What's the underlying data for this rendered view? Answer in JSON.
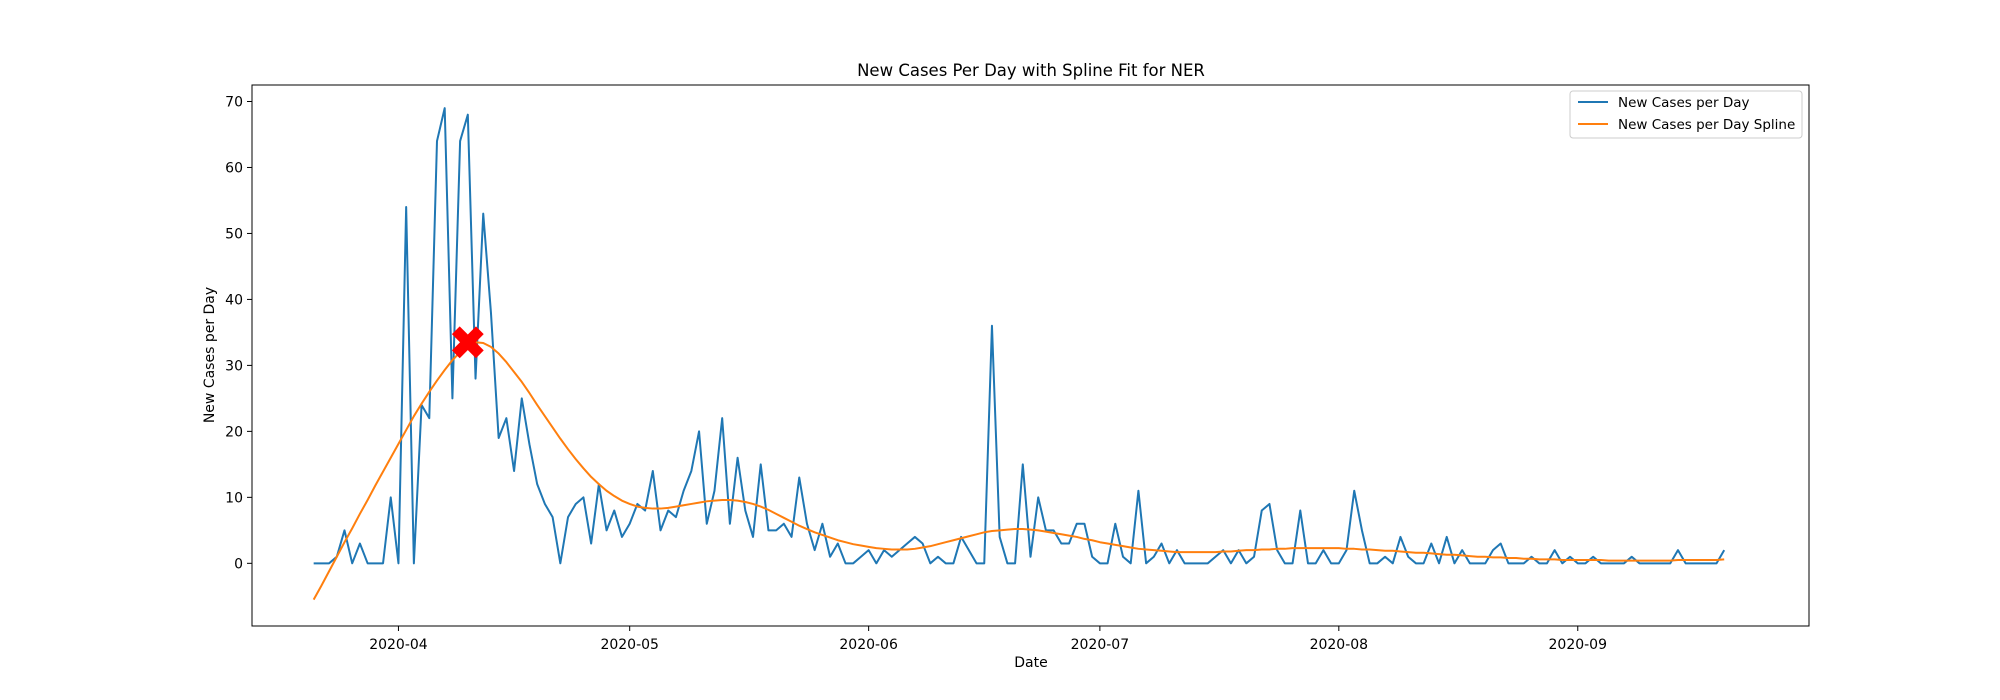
{
  "chart_data": {
    "type": "line",
    "title": "New Cases Per Day with Spline Fit for NER",
    "xlabel": "Date",
    "ylabel": "New Cases per Day",
    "x_start": "2020-03-21",
    "x_tick_labels": [
      "2020-04",
      "2020-05",
      "2020-06",
      "2020-07",
      "2020-08",
      "2020-09"
    ],
    "x_tick_dates": [
      "2020-04-01",
      "2020-05-01",
      "2020-06-01",
      "2020-07-01",
      "2020-08-01",
      "2020-09-01"
    ],
    "xlim": [
      "2020-03-13",
      "2020-10-01"
    ],
    "ylim": [
      -9.5,
      72.5
    ],
    "y_ticks": [
      0,
      10,
      20,
      30,
      40,
      50,
      60,
      70
    ],
    "grid": false,
    "legend_position": "top-right",
    "series": [
      {
        "name": "New Cases per Day",
        "color": "#1f77b4",
        "values": [
          0,
          0,
          0,
          1,
          5,
          0,
          3,
          0,
          0,
          0,
          10,
          0,
          54,
          0,
          24,
          22,
          64,
          69,
          25,
          64,
          68,
          28,
          53,
          38,
          19,
          22,
          14,
          25,
          18,
          12,
          9,
          7,
          0,
          7,
          9,
          10,
          3,
          12,
          5,
          8,
          4,
          6,
          9,
          8,
          14,
          5,
          8,
          7,
          11,
          14,
          20,
          6,
          11,
          22,
          6,
          16,
          8,
          4,
          15,
          5,
          5,
          6,
          4,
          13,
          6,
          2,
          6,
          1,
          3,
          0,
          0,
          1,
          2,
          0,
          2,
          1,
          2,
          3,
          4,
          3,
          0,
          1,
          0,
          0,
          4,
          2,
          0,
          0,
          36,
          4,
          0,
          0,
          15,
          1,
          10,
          5,
          5,
          3,
          3,
          6,
          6,
          1,
          0,
          0,
          6,
          1,
          0,
          11,
          0,
          1,
          3,
          0,
          2,
          0,
          0,
          0,
          0,
          1,
          2,
          0,
          2,
          0,
          1,
          8,
          9,
          2,
          0,
          0,
          8,
          0,
          0,
          2,
          0,
          0,
          2,
          11,
          5,
          0,
          0,
          1,
          0,
          4,
          1,
          0,
          0,
          3,
          0,
          4,
          0,
          2,
          0,
          0,
          0,
          2,
          3,
          0,
          0,
          0,
          1,
          0,
          0,
          2,
          0,
          1,
          0,
          0,
          1,
          0,
          0,
          0,
          0,
          1,
          0,
          0,
          0,
          0,
          0,
          2,
          0,
          0,
          0,
          0,
          0,
          2
        ]
      },
      {
        "name": "New Cases per Day Spline",
        "color": "#ff7f0e",
        "values": [
          -5.5,
          -3.4,
          -1.2,
          1.0,
          3.2,
          5.3,
          7.5,
          9.6,
          11.8,
          13.9,
          16.0,
          18.1,
          20.2,
          22.3,
          24.2,
          26.0,
          27.7,
          29.3,
          30.8,
          32.0,
          33.0,
          33.5,
          33.4,
          32.8,
          31.8,
          30.5,
          29.0,
          27.5,
          25.8,
          24.0,
          22.3,
          20.6,
          18.9,
          17.3,
          15.8,
          14.4,
          13.1,
          12.0,
          11.0,
          10.2,
          9.5,
          9.0,
          8.6,
          8.4,
          8.3,
          8.3,
          8.4,
          8.6,
          8.8,
          9.0,
          9.2,
          9.4,
          9.5,
          9.6,
          9.6,
          9.5,
          9.3,
          9.0,
          8.6,
          8.1,
          7.5,
          6.9,
          6.3,
          5.7,
          5.2,
          4.7,
          4.3,
          3.9,
          3.5,
          3.2,
          2.9,
          2.7,
          2.5,
          2.3,
          2.2,
          2.1,
          2.1,
          2.1,
          2.2,
          2.4,
          2.6,
          2.9,
          3.2,
          3.5,
          3.8,
          4.1,
          4.4,
          4.7,
          4.9,
          5.0,
          5.1,
          5.2,
          5.2,
          5.1,
          5.0,
          4.8,
          4.6,
          4.4,
          4.2,
          4.0,
          3.7,
          3.5,
          3.2,
          3.0,
          2.8,
          2.6,
          2.4,
          2.2,
          2.1,
          2.0,
          1.9,
          1.8,
          1.7,
          1.7,
          1.7,
          1.7,
          1.7,
          1.7,
          1.8,
          1.8,
          1.9,
          2.0,
          2.0,
          2.1,
          2.1,
          2.2,
          2.2,
          2.3,
          2.3,
          2.3,
          2.3,
          2.3,
          2.3,
          2.3,
          2.2,
          2.2,
          2.1,
          2.1,
          2.0,
          1.9,
          1.9,
          1.8,
          1.7,
          1.6,
          1.6,
          1.5,
          1.4,
          1.3,
          1.3,
          1.2,
          1.1,
          1.0,
          1.0,
          0.9,
          0.9,
          0.8,
          0.8,
          0.7,
          0.7,
          0.6,
          0.6,
          0.6,
          0.5,
          0.5,
          0.5,
          0.5,
          0.5,
          0.5,
          0.4,
          0.4,
          0.4,
          0.4,
          0.4,
          0.4,
          0.4,
          0.4,
          0.4,
          0.5,
          0.5,
          0.5,
          0.5,
          0.5,
          0.5,
          0.6
        ]
      }
    ],
    "marker": {
      "date": "2020-04-10",
      "value": 33.5,
      "color": "#ff0000",
      "shape": "x-marker-icon"
    }
  }
}
